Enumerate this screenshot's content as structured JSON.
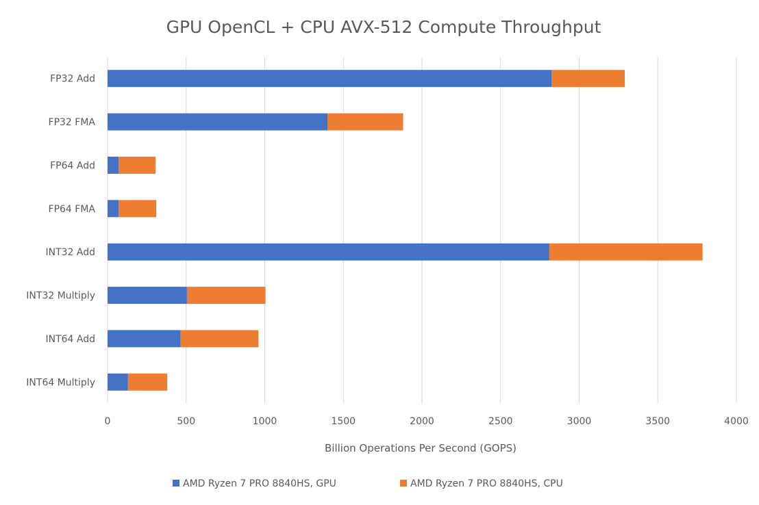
{
  "chart_data": {
    "type": "bar",
    "orientation": "horizontal",
    "stacked": true,
    "title": "GPU OpenCL + CPU AVX-512 Compute Throughput",
    "xlabel": "Billion Operations Per Second (GOPS)",
    "ylabel": "",
    "xlim": [
      0,
      4000
    ],
    "xticks": [
      0,
      500,
      1000,
      1500,
      2000,
      2500,
      3000,
      3500,
      4000
    ],
    "grid": true,
    "legend_position": "bottom",
    "categories": [
      "FP32 Add",
      "FP32 FMA",
      "FP64 Add",
      "FP64 FMA",
      "INT32 Add",
      "INT32 Multiply",
      "INT64 Add",
      "INT64 Multiply"
    ],
    "series": [
      {
        "name": "AMD Ryzen 7 PRO 8840HS, GPU",
        "color": "#4472c4",
        "values": [
          2825,
          1400,
          70,
          70,
          2810,
          505,
          465,
          130
        ]
      },
      {
        "name": "AMD Ryzen 7 PRO 8840HS, CPU",
        "color": "#ed7d31",
        "values": [
          465,
          480,
          235,
          240,
          975,
          500,
          495,
          250
        ]
      }
    ]
  }
}
